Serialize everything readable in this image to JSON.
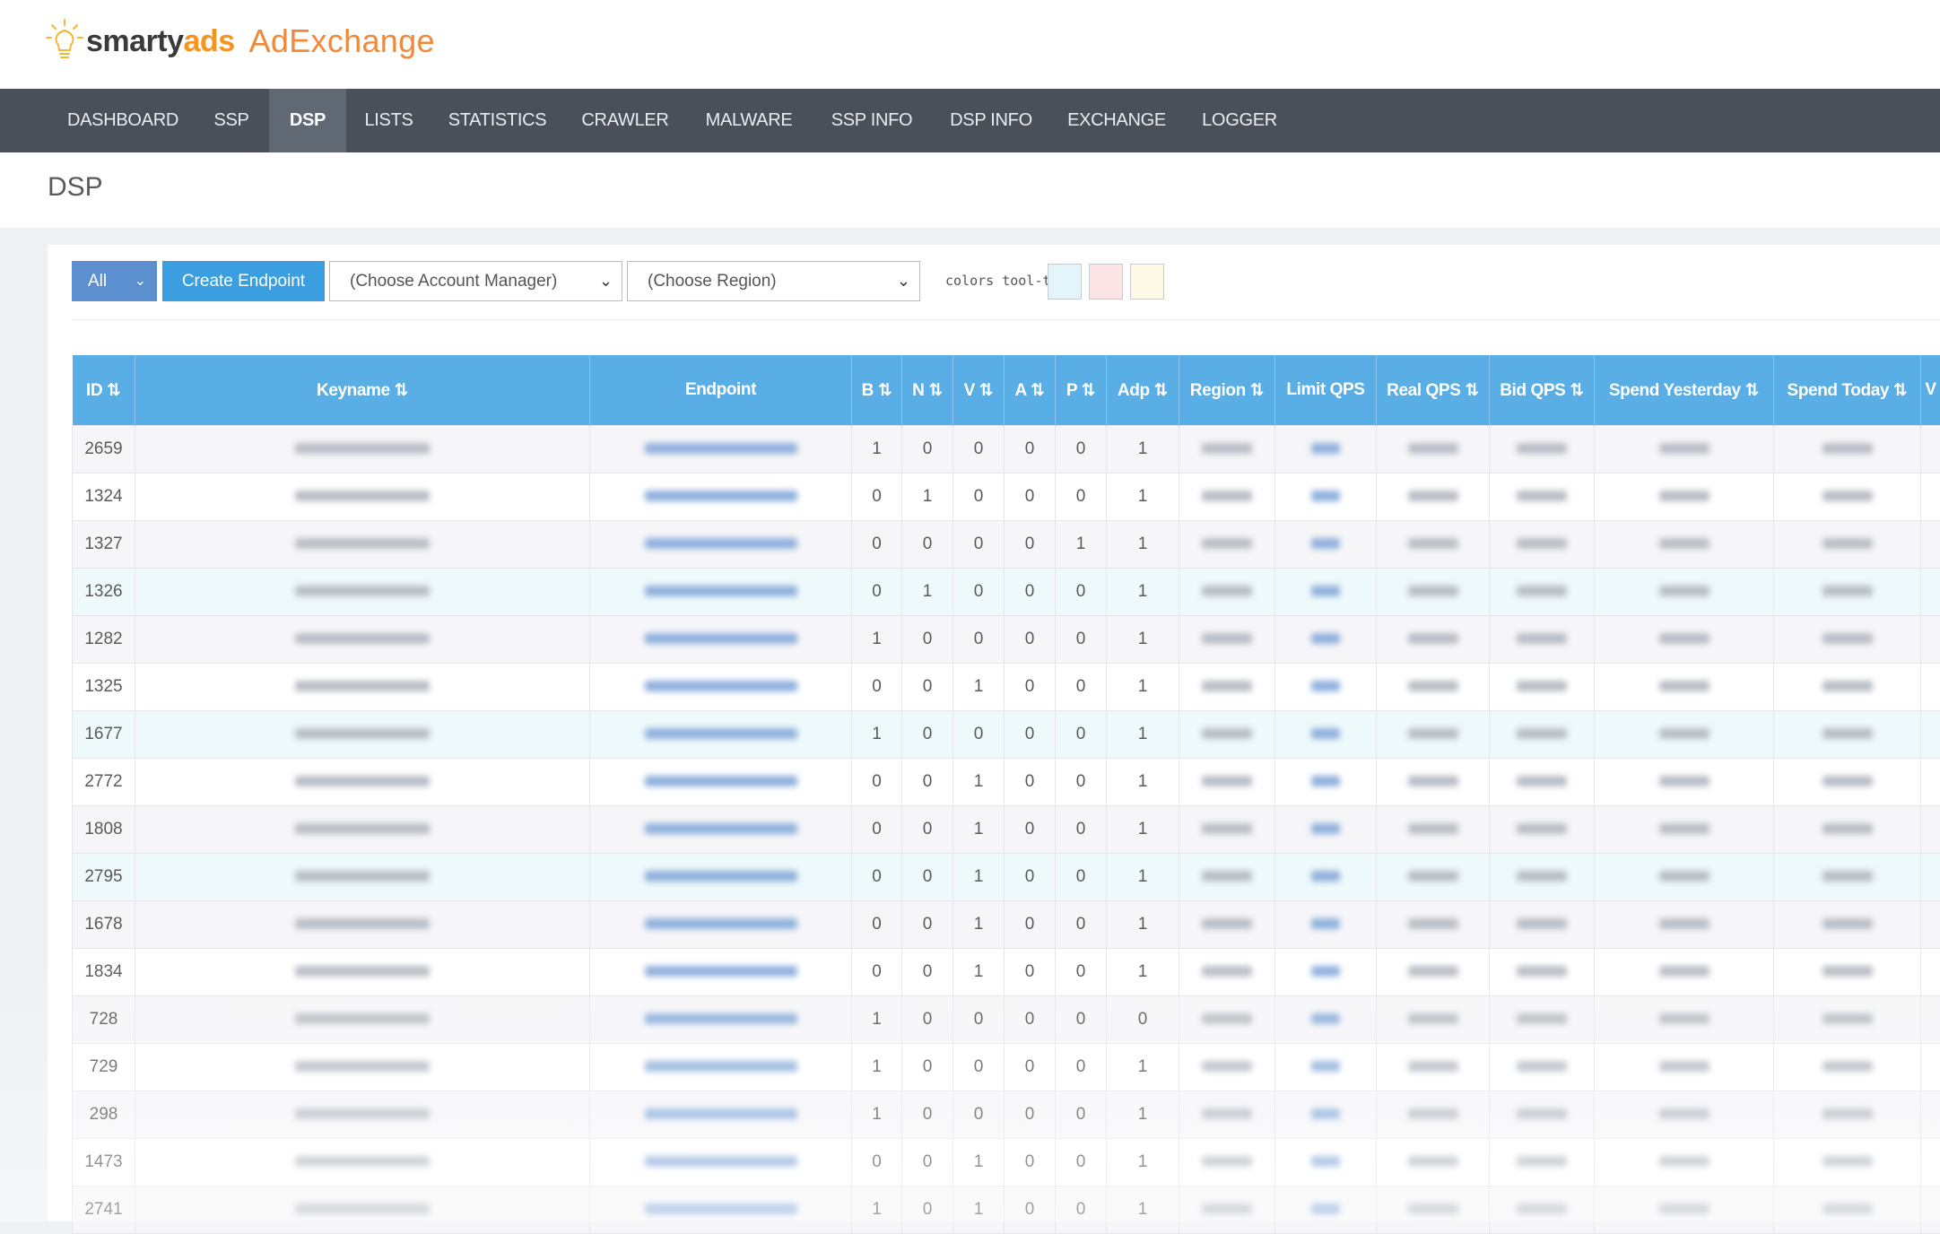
{
  "brand": {
    "name_prefix": "smarty",
    "name_suffix": "ads",
    "app": "AdExchange"
  },
  "nav": {
    "items": [
      {
        "label": "DASHBOARD"
      },
      {
        "label": "SSP"
      },
      {
        "label": "DSP"
      },
      {
        "label": "LISTS"
      },
      {
        "label": "STATISTICS"
      },
      {
        "label": "CRAWLER"
      },
      {
        "label": "MALWARE"
      },
      {
        "label": "SSP INFO"
      },
      {
        "label": "DSP INFO"
      },
      {
        "label": "EXCHANGE"
      },
      {
        "label": "LOGGER"
      }
    ],
    "active": "DSP"
  },
  "page": {
    "title": "DSP"
  },
  "toolbar": {
    "filter_value": "All",
    "create_label": "Create Endpoint",
    "account_manager": "(Choose Account Manager)",
    "region": "(Choose Region)",
    "tooltip_label": "colors tool-tip:"
  },
  "legend_colors": {
    "blue": "#e3f4fb",
    "pink": "#fce4e6",
    "yellow": "#fdf9e6"
  },
  "colors": {
    "nav_bg": "#4a5059",
    "header_bg": "#5aaee6",
    "primary": "#3a9ee0",
    "filter_btn": "#5b8fcf",
    "brand_orange": "#f08a3a"
  },
  "table": {
    "columns": [
      "ID ⇅",
      "Keyname ⇅",
      "Endpoint",
      "B ⇅",
      "N ⇅",
      "V ⇅",
      "A ⇅",
      "P ⇅",
      "Adp ⇅",
      "Region ⇅",
      "Limit QPS",
      "Real QPS ⇅",
      "Bid QPS ⇅",
      "Spend Yesterday ⇅",
      "Spend Today ⇅",
      "V"
    ],
    "rows": [
      {
        "id": "2659",
        "b": "1",
        "n": "0",
        "v": "0",
        "a": "0",
        "p": "0",
        "adp": "1"
      },
      {
        "id": "1324",
        "b": "0",
        "n": "1",
        "v": "0",
        "a": "0",
        "p": "0",
        "adp": "1"
      },
      {
        "id": "1327",
        "b": "0",
        "n": "0",
        "v": "0",
        "a": "0",
        "p": "1",
        "adp": "1"
      },
      {
        "id": "1326",
        "b": "0",
        "n": "1",
        "v": "0",
        "a": "0",
        "p": "0",
        "adp": "1"
      },
      {
        "id": "1282",
        "b": "1",
        "n": "0",
        "v": "0",
        "a": "0",
        "p": "0",
        "adp": "1"
      },
      {
        "id": "1325",
        "b": "0",
        "n": "0",
        "v": "1",
        "a": "0",
        "p": "0",
        "adp": "1"
      },
      {
        "id": "1677",
        "b": "1",
        "n": "0",
        "v": "0",
        "a": "0",
        "p": "0",
        "adp": "1"
      },
      {
        "id": "2772",
        "b": "0",
        "n": "0",
        "v": "1",
        "a": "0",
        "p": "0",
        "adp": "1"
      },
      {
        "id": "1808",
        "b": "0",
        "n": "0",
        "v": "1",
        "a": "0",
        "p": "0",
        "adp": "1"
      },
      {
        "id": "2795",
        "b": "0",
        "n": "0",
        "v": "1",
        "a": "0",
        "p": "0",
        "adp": "1"
      },
      {
        "id": "1678",
        "b": "0",
        "n": "0",
        "v": "1",
        "a": "0",
        "p": "0",
        "adp": "1"
      },
      {
        "id": "1834",
        "b": "0",
        "n": "0",
        "v": "1",
        "a": "0",
        "p": "0",
        "adp": "1"
      },
      {
        "id": "728",
        "b": "1",
        "n": "0",
        "v": "0",
        "a": "0",
        "p": "0",
        "adp": "0"
      },
      {
        "id": "729",
        "b": "1",
        "n": "0",
        "v": "0",
        "a": "0",
        "p": "0",
        "adp": "1"
      },
      {
        "id": "298",
        "b": "1",
        "n": "0",
        "v": "0",
        "a": "0",
        "p": "0",
        "adp": "1"
      },
      {
        "id": "1473",
        "b": "0",
        "n": "0",
        "v": "1",
        "a": "0",
        "p": "0",
        "adp": "1"
      },
      {
        "id": "2741",
        "b": "1",
        "n": "0",
        "v": "1",
        "a": "0",
        "p": "0",
        "adp": "1"
      }
    ]
  }
}
